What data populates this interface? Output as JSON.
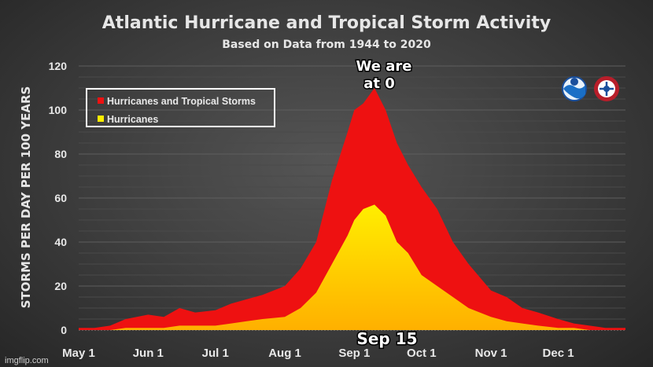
{
  "chart_data": {
    "type": "area",
    "title": "Atlantic Hurricane and Tropical Storm Activity",
    "subtitle": "Based on Data from 1944 to 2020",
    "xlabel": "",
    "ylabel": "STORMS PER DAY PER 100 YEARS",
    "ylim": [
      0,
      120
    ],
    "yticks": [
      0,
      20,
      40,
      60,
      80,
      100,
      120
    ],
    "x_tick_labels": [
      "May 1",
      "Jun 1",
      "Jul 1",
      "Aug 1",
      "Sep 1",
      "Oct 1",
      "Nov 1",
      "Dec 1"
    ],
    "grid": true,
    "legend_position": "top-left",
    "series": [
      {
        "name": "Hurricanes and Tropical Storms",
        "color": "#ee1111",
        "x": [
          "May 1",
          "May 8",
          "May 15",
          "May 22",
          "Jun 1",
          "Jun 8",
          "Jun 15",
          "Jun 22",
          "Jul 1",
          "Jul 8",
          "Jul 15",
          "Jul 22",
          "Aug 1",
          "Aug 8",
          "Aug 15",
          "Aug 22",
          "Aug 29",
          "Sep 1",
          "Sep 5",
          "Sep 10",
          "Sep 15",
          "Sep 20",
          "Sep 25",
          "Oct 1",
          "Oct 8",
          "Oct 15",
          "Oct 22",
          "Nov 1",
          "Nov 8",
          "Nov 15",
          "Nov 22",
          "Dec 1",
          "Dec 8",
          "Dec 15",
          "Dec 22",
          "Dec 31"
        ],
        "values": [
          1,
          1,
          2,
          5,
          7,
          6,
          10,
          8,
          9,
          12,
          14,
          16,
          20,
          28,
          40,
          68,
          90,
          100,
          103,
          110,
          100,
          85,
          75,
          65,
          55,
          40,
          30,
          18,
          15,
          10,
          8,
          5,
          3,
          2,
          1,
          1
        ]
      },
      {
        "name": "Hurricanes",
        "color": "#ffee00",
        "x": [
          "May 1",
          "May 8",
          "May 15",
          "May 22",
          "Jun 1",
          "Jun 8",
          "Jun 15",
          "Jun 22",
          "Jul 1",
          "Jul 8",
          "Jul 15",
          "Jul 22",
          "Aug 1",
          "Aug 8",
          "Aug 15",
          "Aug 22",
          "Aug 29",
          "Sep 1",
          "Sep 5",
          "Sep 10",
          "Sep 15",
          "Sep 20",
          "Sep 25",
          "Oct 1",
          "Oct 8",
          "Oct 15",
          "Oct 22",
          "Nov 1",
          "Nov 8",
          "Nov 15",
          "Nov 22",
          "Dec 1",
          "Dec 8",
          "Dec 15",
          "Dec 22",
          "Dec 31"
        ],
        "values": [
          0,
          0,
          0,
          1,
          1,
          1,
          2,
          2,
          2,
          3,
          4,
          5,
          6,
          10,
          17,
          30,
          43,
          50,
          55,
          57,
          52,
          40,
          35,
          25,
          20,
          15,
          10,
          6,
          4,
          3,
          2,
          1,
          1,
          0,
          0,
          0
        ]
      }
    ]
  },
  "overlay": {
    "top_text_line1": "We are",
    "top_text_line2": "at 0",
    "bottom_text": "Sep 15",
    "watermark": "imgflip.com"
  }
}
